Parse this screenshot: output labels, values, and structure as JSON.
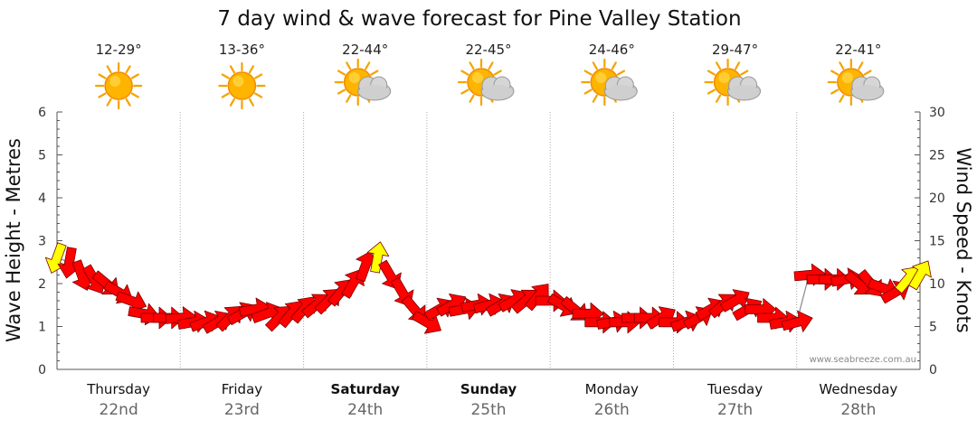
{
  "title": "7 day wind & wave forecast for Pine Valley Station",
  "credit": "www.seabreeze.com.au",
  "colors": {
    "wind_arrow": "#ff0000",
    "wind_arrow_light": "#ffff00",
    "wave_line": "#888888",
    "grid": "#aaaaaa",
    "plot_bg": "#ffffff"
  },
  "days": [
    {
      "name": "Thursday",
      "date": "22nd",
      "temp": "12-29°",
      "icon": "sun-icon",
      "weekend": false
    },
    {
      "name": "Friday",
      "date": "23rd",
      "temp": "13-36°",
      "icon": "sun-icon",
      "weekend": false
    },
    {
      "name": "Saturday",
      "date": "24th",
      "temp": "22-44°",
      "icon": "partly-cloudy-icon",
      "weekend": true
    },
    {
      "name": "Sunday",
      "date": "25th",
      "temp": "22-45°",
      "icon": "partly-cloudy-icon",
      "weekend": true
    },
    {
      "name": "Monday",
      "date": "26th",
      "temp": "24-46°",
      "icon": "partly-cloudy-icon",
      "weekend": false
    },
    {
      "name": "Tuesday",
      "date": "27th",
      "temp": "29-47°",
      "icon": "partly-cloudy-icon",
      "weekend": false
    },
    {
      "name": "Wednesday",
      "date": "28th",
      "temp": "22-41°",
      "icon": "partly-cloudy-icon",
      "weekend": false
    }
  ],
  "chart_data": {
    "type": "line",
    "xlabel": "",
    "ylabel": "Wave Height - Metres",
    "y2label": "Wind Speed - Knots",
    "ylim": [
      0,
      6
    ],
    "y2lim": [
      0,
      30
    ],
    "yticks": [
      0,
      1,
      2,
      3,
      4,
      5,
      6
    ],
    "y2ticks": [
      0,
      5,
      10,
      15,
      20,
      25,
      30
    ],
    "grid": true,
    "x_days": 7,
    "series": [
      {
        "unit": "knots",
        "x": [
          0.0,
          0.1,
          0.2,
          0.3,
          0.4,
          0.5,
          0.6,
          0.7,
          0.8,
          0.9,
          1.0,
          1.1,
          1.2,
          1.3,
          1.4,
          1.5,
          1.6,
          1.7,
          1.8,
          1.9,
          2.0,
          2.1,
          2.2,
          2.3,
          2.4,
          2.5,
          2.6,
          2.7,
          2.8,
          2.9,
          3.0,
          3.1,
          3.2,
          3.3,
          3.4,
          3.5,
          3.6,
          3.7,
          3.8,
          3.9,
          4.0,
          4.1,
          4.2,
          4.3,
          4.4,
          4.5,
          4.6,
          4.7,
          4.8,
          4.9,
          5.0,
          5.1,
          5.2,
          5.3,
          5.4,
          5.5,
          5.6,
          5.7,
          5.8,
          5.9,
          6.0,
          6.1,
          6.2,
          6.3,
          6.4,
          6.5,
          6.6,
          6.7,
          6.8,
          6.9,
          7.0
        ],
        "values": [
          13,
          12.5,
          11,
          10.5,
          10,
          9,
          8,
          6.5,
          6,
          6,
          6,
          5.5,
          5.5,
          5.5,
          6,
          6.5,
          7,
          6.5,
          6,
          6.5,
          7,
          7.5,
          8,
          9,
          10,
          12,
          13,
          11,
          9,
          7,
          5.5,
          7,
          7.5,
          7,
          7.5,
          7.5,
          7.5,
          8,
          8,
          8.5,
          8,
          7.5,
          7,
          6.5,
          5.5,
          5.5,
          5.5,
          6,
          6,
          6,
          5.5,
          5.5,
          6,
          7,
          7.5,
          8,
          7,
          7,
          6,
          5.5,
          5.5,
          11,
          10.5,
          10.5,
          10.5,
          10,
          10,
          9.5,
          9,
          10.5,
          11
        ],
        "direction_deg": [
          200,
          190,
          160,
          150,
          130,
          120,
          110,
          100,
          90,
          90,
          85,
          80,
          70,
          60,
          45,
          60,
          80,
          70,
          45,
          40,
          40,
          50,
          45,
          40,
          30,
          20,
          10,
          150,
          150,
          140,
          120,
          60,
          60,
          80,
          80,
          75,
          60,
          60,
          50,
          40,
          90,
          120,
          130,
          90,
          90,
          80,
          90,
          90,
          90,
          60,
          90,
          70,
          60,
          60,
          50,
          60,
          60,
          90,
          90,
          80,
          75,
          85,
          90,
          90,
          80,
          130,
          140,
          110,
          60,
          40,
          30
        ],
        "light_indices": [
          0,
          26,
          69,
          70
        ]
      }
    ]
  }
}
